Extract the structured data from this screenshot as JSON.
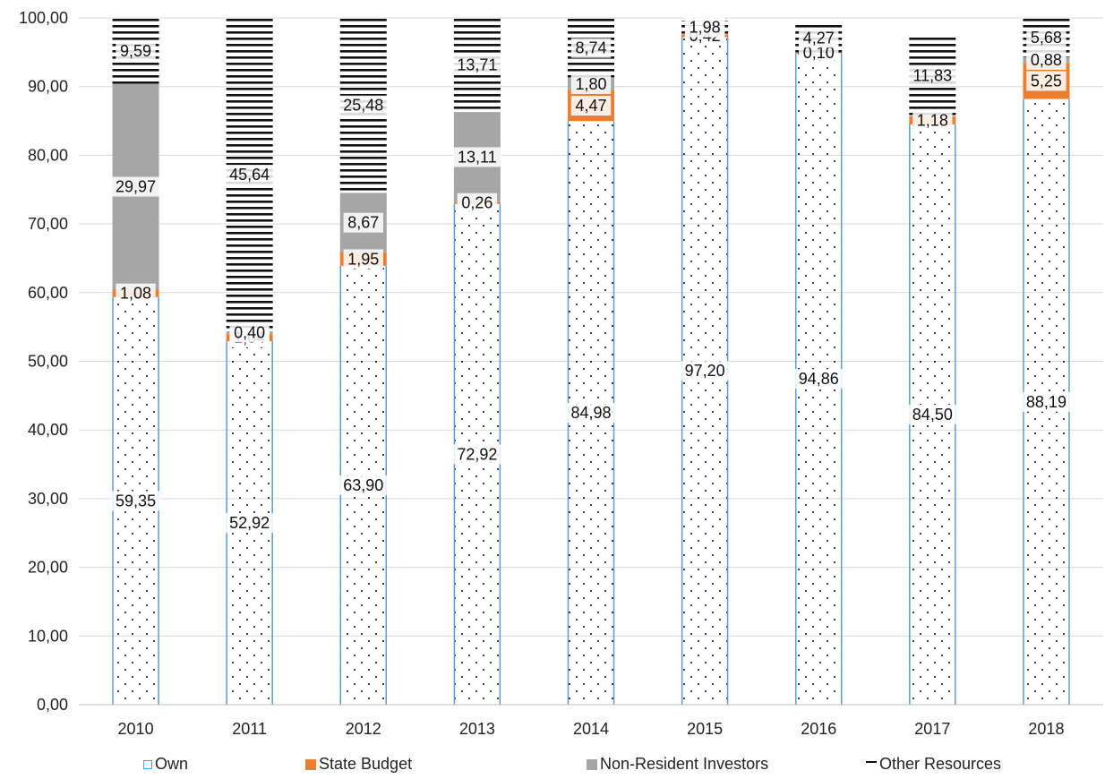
{
  "chart_data": {
    "type": "bar",
    "stacked": true,
    "title": "",
    "xlabel": "",
    "ylabel": "",
    "ylim": [
      0,
      100
    ],
    "y_ticks": [
      "0,00",
      "10,00",
      "20,00",
      "30,00",
      "40,00",
      "50,00",
      "60,00",
      "70,00",
      "80,00",
      "90,00",
      "100,00"
    ],
    "categories": [
      "2010",
      "2011",
      "2012",
      "2013",
      "2014",
      "2015",
      "2016",
      "2017",
      "2018"
    ],
    "grid": true,
    "legend_position": "bottom",
    "series": [
      {
        "name": "Own",
        "color": "#5b9bd5",
        "pattern": "dots",
        "values": [
          59.35,
          52.92,
          63.9,
          72.92,
          84.98,
          97.2,
          94.86,
          84.5,
          88.19
        ],
        "labels": [
          "59,35",
          "52,92",
          "63,90",
          "72,92",
          "84,98",
          "97,20",
          "94,86",
          "84,50",
          "88,19"
        ]
      },
      {
        "name": "State Budget",
        "color": "#ed7d31",
        "pattern": "solid",
        "values": [
          1.08,
          1.04,
          1.95,
          0.26,
          4.47,
          0.42,
          0.1,
          1.18,
          5.25
        ],
        "labels": [
          "1,08",
          "1,04",
          "1,95",
          "0,26",
          "4,47",
          "0,42",
          "0,10",
          "1,18",
          "5,25"
        ]
      },
      {
        "name": "Non-Resident Investors",
        "color": "#a6a6a6",
        "pattern": "solid",
        "values": [
          29.97,
          0.4,
          8.67,
          13.11,
          1.8,
          0.0,
          0.0,
          0.0,
          0.88
        ],
        "labels": [
          "29,97",
          "0,40",
          "8,67",
          "13,11",
          "1,80",
          "",
          "",
          "",
          "0,88"
        ]
      },
      {
        "name": "Other Resources",
        "color": "#111111",
        "pattern": "stripes",
        "values": [
          9.59,
          45.64,
          25.48,
          13.71,
          8.74,
          1.98,
          4.27,
          11.83,
          5.68
        ],
        "labels": [
          "9,59",
          "45,64",
          "25,48",
          "13,71",
          "8,74",
          "1,98",
          "4,27",
          "11,83",
          "5,68"
        ]
      }
    ]
  },
  "legend": {
    "own": "Own",
    "state_budget": "State Budget",
    "non_resident": "Non-Resident Investors",
    "other": "Other Resources"
  }
}
